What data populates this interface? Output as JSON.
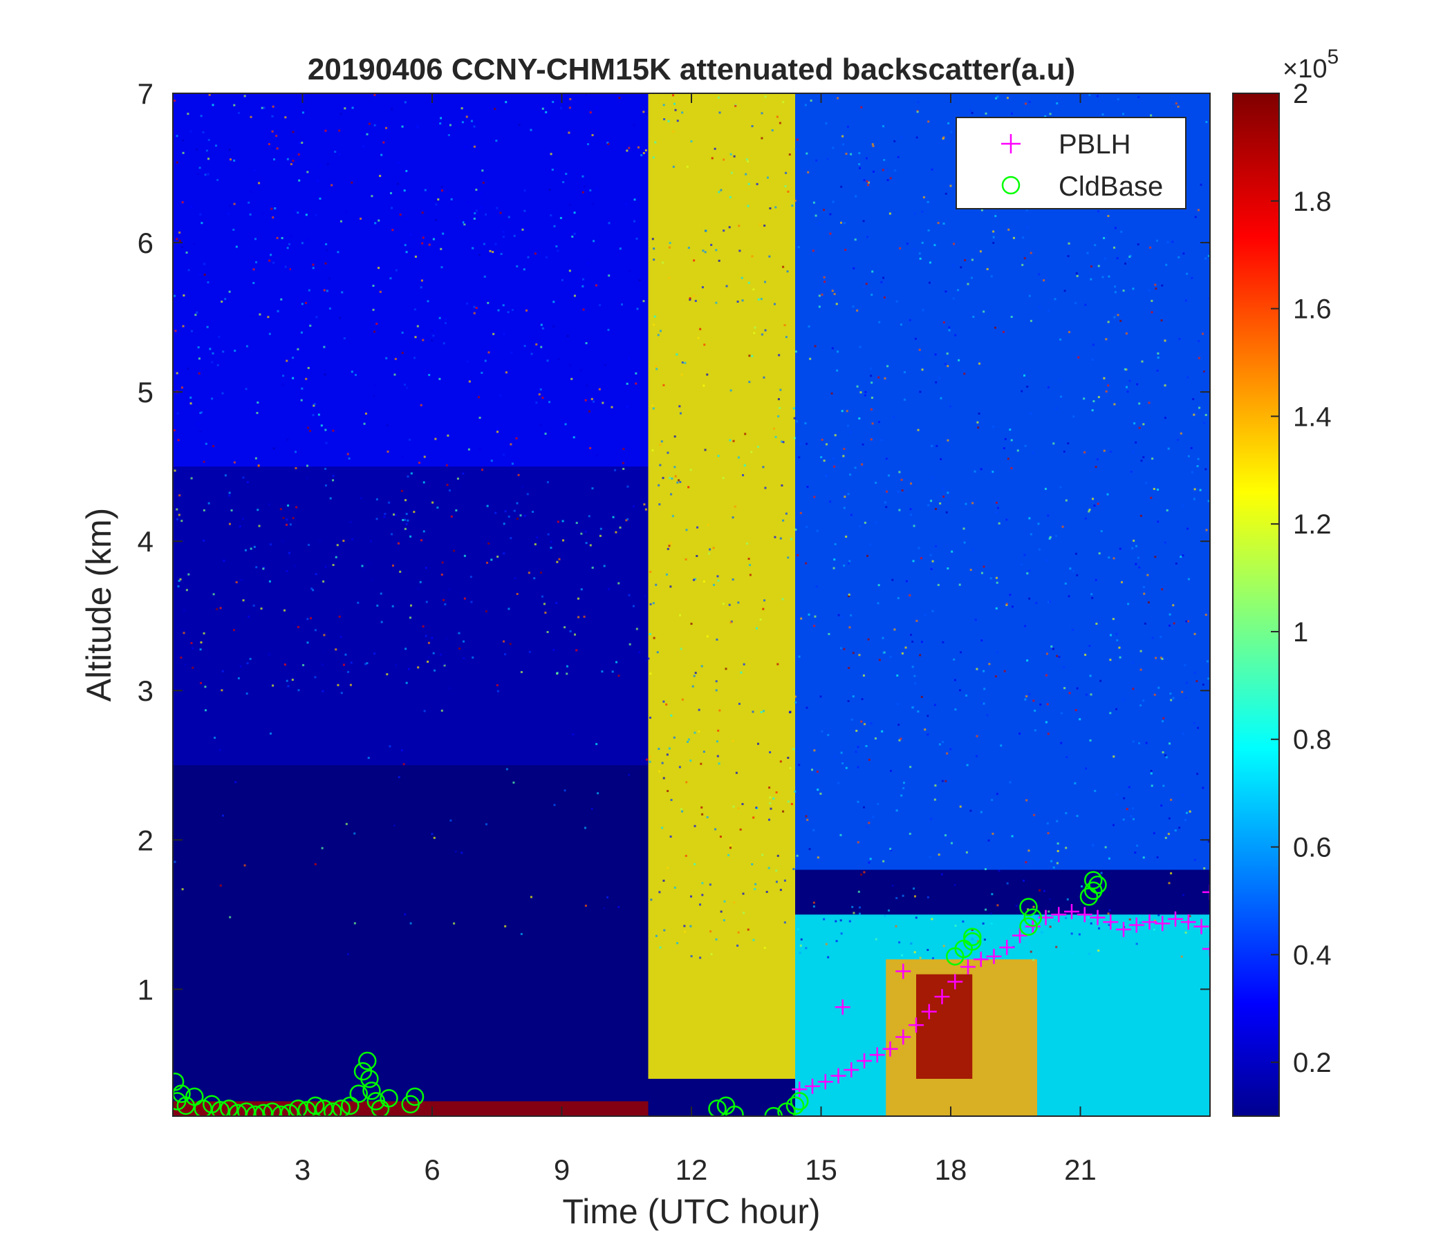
{
  "chart_data": {
    "type": "heatmap",
    "title": "20190406 CCNY-CHM15K attenuated backscatter(a.u)",
    "xlabel": "Time (UTC hour)",
    "ylabel": "Altitude (km)",
    "xlim": [
      0,
      24
    ],
    "ylim": [
      0.15,
      7
    ],
    "x_ticks": [
      3,
      6,
      9,
      12,
      15,
      18,
      21
    ],
    "y_ticks": [
      1,
      2,
      3,
      4,
      5,
      6,
      7
    ],
    "grid": false,
    "colormap": "jet",
    "colorbar": {
      "range": [
        0.1,
        2
      ],
      "ticks": [
        0.2,
        0.4,
        0.6,
        0.8,
        1,
        1.2,
        1.4,
        1.6,
        1.8,
        2
      ],
      "multiplier_label": "×10",
      "multiplier_exponent": "5"
    },
    "legend": {
      "placement": "top-right",
      "entries": [
        {
          "label": "PBLH",
          "marker": "+",
          "color": "#ff00ff"
        },
        {
          "label": "CldBase",
          "marker": "o",
          "color": "#00ff00"
        }
      ]
    },
    "field_regions": [
      {
        "x": [
          0,
          11
        ],
        "y": [
          0.15,
          0.25
        ],
        "level": 1.95,
        "note": "near-surface layer"
      },
      {
        "x": [
          0,
          11
        ],
        "y": [
          0.25,
          2.5
        ],
        "level": 0.1
      },
      {
        "x": [
          0,
          11
        ],
        "y": [
          2.5,
          4.5
        ],
        "level": 0.2
      },
      {
        "x": [
          0,
          11
        ],
        "y": [
          4.5,
          7
        ],
        "level": 0.35
      },
      {
        "x": [
          11,
          14.4
        ],
        "y": [
          0.4,
          7
        ],
        "level": 1.3
      },
      {
        "x": [
          14.4,
          24
        ],
        "y": [
          1.8,
          7
        ],
        "level": 0.5
      },
      {
        "x": [
          14.4,
          24
        ],
        "y": [
          0.15,
          1.5
        ],
        "level": 0.8
      },
      {
        "x": [
          16.5,
          20
        ],
        "y": [
          0.15,
          1.2
        ],
        "level": 1.45
      },
      {
        "x": [
          17.2,
          18.5
        ],
        "y": [
          0.4,
          1.1
        ],
        "level": 1.95
      }
    ],
    "series": [
      {
        "name": "PBLH",
        "marker": "+",
        "color": "#ff00ff",
        "x": [
          14.5,
          14.8,
          15.1,
          15.4,
          15.7,
          16.0,
          16.3,
          16.6,
          16.9,
          17.2,
          17.5,
          17.8,
          18.1,
          18.4,
          18.7,
          19.0,
          19.3,
          19.6,
          19.9,
          20.2,
          20.5,
          20.8,
          21.1,
          21.4,
          21.7,
          22.0,
          22.3,
          22.6,
          22.9,
          23.2,
          23.5,
          23.8,
          24.0,
          24.0,
          15.5,
          16.9
        ],
        "y": [
          0.33,
          0.35,
          0.38,
          0.42,
          0.46,
          0.52,
          0.56,
          0.6,
          0.68,
          0.76,
          0.85,
          0.95,
          1.05,
          1.15,
          1.2,
          1.22,
          1.28,
          1.36,
          1.42,
          1.48,
          1.5,
          1.52,
          1.5,
          1.48,
          1.45,
          1.4,
          1.43,
          1.45,
          1.44,
          1.47,
          1.45,
          1.42,
          1.65,
          1.27,
          0.88,
          1.12
        ]
      },
      {
        "name": "CldBase",
        "marker": "o",
        "color": "#00ff00",
        "x": [
          0.05,
          0.1,
          0.2,
          0.3,
          0.5,
          0.7,
          0.9,
          1.1,
          1.3,
          1.5,
          1.7,
          1.9,
          2.1,
          2.3,
          2.5,
          2.7,
          2.9,
          3.1,
          3.3,
          3.5,
          3.7,
          3.9,
          4.1,
          4.3,
          4.4,
          4.5,
          4.55,
          4.6,
          4.7,
          4.8,
          5.0,
          5.5,
          5.6,
          12.6,
          12.8,
          13.0,
          13.9,
          14.2,
          14.4,
          14.5,
          18.1,
          18.3,
          18.5,
          18.5,
          19.8,
          19.9,
          19.8,
          21.2,
          21.3,
          21.4,
          21.3
        ],
        "y": [
          0.38,
          0.25,
          0.3,
          0.22,
          0.28,
          0.2,
          0.23,
          0.19,
          0.2,
          0.17,
          0.18,
          0.16,
          0.17,
          0.18,
          0.16,
          0.17,
          0.2,
          0.19,
          0.22,
          0.2,
          0.18,
          0.2,
          0.22,
          0.3,
          0.45,
          0.52,
          0.4,
          0.32,
          0.25,
          0.2,
          0.27,
          0.23,
          0.28,
          0.2,
          0.22,
          0.16,
          0.15,
          0.18,
          0.22,
          0.25,
          1.22,
          1.27,
          1.32,
          1.35,
          1.42,
          1.48,
          1.55,
          1.62,
          1.66,
          1.7,
          1.73
        ]
      }
    ]
  }
}
